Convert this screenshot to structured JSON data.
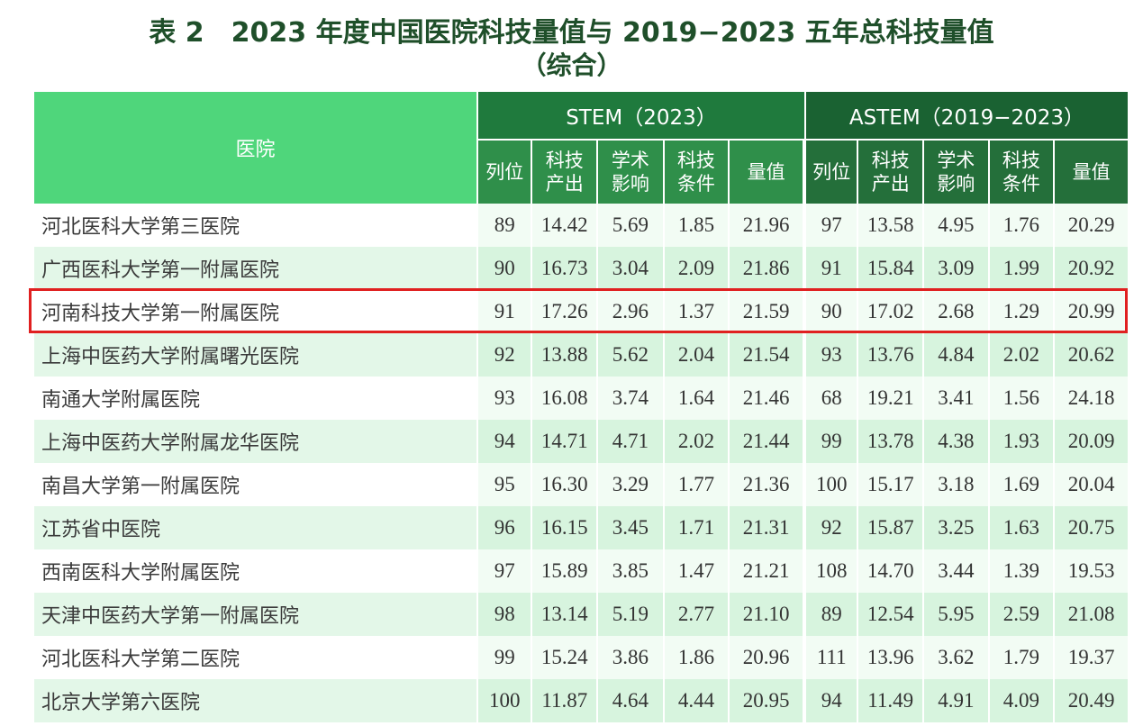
{
  "title": {
    "line1": "表 2　2023 年度中国医院科技量值与 2019−2023 五年总科技量值",
    "line2": "（综合）"
  },
  "header": {
    "hospital": "医院",
    "stem_group": "STEM（2023）",
    "astem_group": "ASTEM（2019−2023）",
    "columns": [
      "列位",
      "科技\n产出",
      "学术\n影响",
      "科技\n条件",
      "量值"
    ]
  },
  "highlight_color": "#e02020",
  "rows": [
    {
      "name": "河北医科大学第三医院",
      "stem": [
        "89",
        "14.42",
        "5.69",
        "1.85",
        "21.96"
      ],
      "astem": [
        "97",
        "13.58",
        "4.95",
        "1.76",
        "20.29"
      ]
    },
    {
      "name": "广西医科大学第一附属医院",
      "stem": [
        "90",
        "16.73",
        "3.04",
        "2.09",
        "21.86"
      ],
      "astem": [
        "91",
        "15.84",
        "3.09",
        "1.99",
        "20.92"
      ]
    },
    {
      "name": "河南科技大学第一附属医院",
      "stem": [
        "91",
        "17.26",
        "2.96",
        "1.37",
        "21.59"
      ],
      "astem": [
        "90",
        "17.02",
        "2.68",
        "1.29",
        "20.99"
      ],
      "highlighted": true
    },
    {
      "name": "上海中医药大学附属曙光医院",
      "stem": [
        "92",
        "13.88",
        "5.62",
        "2.04",
        "21.54"
      ],
      "astem": [
        "93",
        "13.76",
        "4.84",
        "2.02",
        "20.62"
      ]
    },
    {
      "name": "南通大学附属医院",
      "stem": [
        "93",
        "16.08",
        "3.74",
        "1.64",
        "21.46"
      ],
      "astem": [
        "68",
        "19.21",
        "3.41",
        "1.56",
        "24.18"
      ]
    },
    {
      "name": "上海中医药大学附属龙华医院",
      "stem": [
        "94",
        "14.71",
        "4.71",
        "2.02",
        "21.44"
      ],
      "astem": [
        "99",
        "13.78",
        "4.38",
        "1.93",
        "20.09"
      ]
    },
    {
      "name": "南昌大学第一附属医院",
      "stem": [
        "95",
        "16.30",
        "3.29",
        "1.77",
        "21.36"
      ],
      "astem": [
        "100",
        "15.17",
        "3.18",
        "1.69",
        "20.04"
      ]
    },
    {
      "name": "江苏省中医院",
      "stem": [
        "96",
        "16.15",
        "3.45",
        "1.71",
        "21.31"
      ],
      "astem": [
        "92",
        "15.87",
        "3.25",
        "1.63",
        "20.75"
      ]
    },
    {
      "name": "西南医科大学附属医院",
      "stem": [
        "97",
        "15.89",
        "3.85",
        "1.47",
        "21.21"
      ],
      "astem": [
        "108",
        "14.70",
        "3.44",
        "1.39",
        "19.53"
      ]
    },
    {
      "name": "天津中医药大学第一附属医院",
      "stem": [
        "98",
        "13.14",
        "5.19",
        "2.77",
        "21.10"
      ],
      "astem": [
        "89",
        "12.54",
        "5.95",
        "2.59",
        "21.08"
      ]
    },
    {
      "name": "河北医科大学第二医院",
      "stem": [
        "99",
        "15.24",
        "3.86",
        "1.86",
        "20.96"
      ],
      "astem": [
        "111",
        "13.96",
        "3.62",
        "1.79",
        "19.37"
      ]
    },
    {
      "name": "北京大学第六医院",
      "stem": [
        "100",
        "11.87",
        "4.64",
        "4.44",
        "20.95"
      ],
      "astem": [
        "94",
        "11.49",
        "4.91",
        "4.09",
        "20.49"
      ]
    }
  ]
}
